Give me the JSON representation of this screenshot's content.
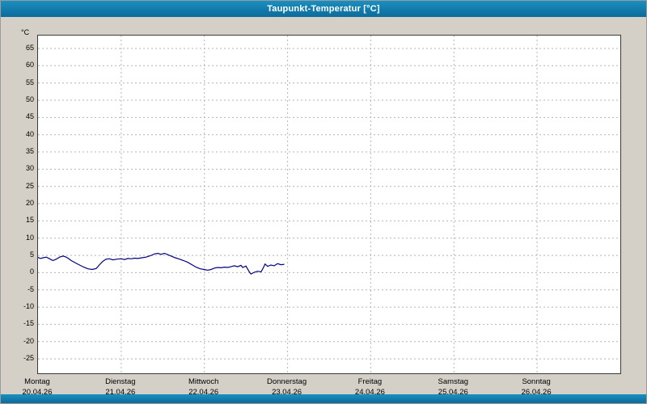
{
  "window": {
    "title": "Taupunkt-Temperatur [°C]"
  },
  "colors": {
    "titlebar": "#1080b0",
    "page_bg": "#d4d0c8",
    "plot_bg": "#ffffff",
    "plot_border": "#3a3a3a",
    "grid": "#b4b4b4",
    "line": "#000080"
  },
  "chart_data": {
    "type": "line",
    "title": "Taupunkt-Temperatur [°C]",
    "xlabel": "",
    "ylabel": "°C",
    "ylim": [
      -29.2,
      68.75
    ],
    "yticks": [
      65,
      60,
      55,
      50,
      45,
      40,
      35,
      30,
      25,
      20,
      15,
      10,
      5,
      0,
      -5,
      -10,
      -15,
      -20,
      -25
    ],
    "grid": "dashed",
    "legend_position": "none",
    "x_total_days": 7,
    "x_days": [
      {
        "name": "Montag",
        "date": "20.04.26"
      },
      {
        "name": "Dienstag",
        "date": "21.04.26"
      },
      {
        "name": "Mittwoch",
        "date": "22.04.26"
      },
      {
        "name": "Donnerstag",
        "date": "23.04.26"
      },
      {
        "name": "Freitag",
        "date": "24.04.26"
      },
      {
        "name": "Samstag",
        "date": "25.04.26"
      },
      {
        "name": "Sonntag",
        "date": "26.04.26"
      }
    ],
    "series": [
      {
        "name": "Taupunkt",
        "color": "#000080",
        "points": [
          [
            0.0,
            4.4
          ],
          [
            0.03,
            4.1
          ],
          [
            0.06,
            4.3
          ],
          [
            0.1,
            4.5
          ],
          [
            0.14,
            4.0
          ],
          [
            0.18,
            3.5
          ],
          [
            0.22,
            3.9
          ],
          [
            0.26,
            4.5
          ],
          [
            0.3,
            4.8
          ],
          [
            0.33,
            4.6
          ],
          [
            0.36,
            4.2
          ],
          [
            0.4,
            3.5
          ],
          [
            0.45,
            2.8
          ],
          [
            0.5,
            2.2
          ],
          [
            0.55,
            1.6
          ],
          [
            0.6,
            1.1
          ],
          [
            0.65,
            0.9
          ],
          [
            0.7,
            1.2
          ],
          [
            0.74,
            2.3
          ],
          [
            0.78,
            3.3
          ],
          [
            0.82,
            3.9
          ],
          [
            0.86,
            4.0
          ],
          [
            0.9,
            3.7
          ],
          [
            0.95,
            3.9
          ],
          [
            1.0,
            4.0
          ],
          [
            1.04,
            3.8
          ],
          [
            1.08,
            4.1
          ],
          [
            1.12,
            4.0
          ],
          [
            1.16,
            4.2
          ],
          [
            1.2,
            4.1
          ],
          [
            1.25,
            4.3
          ],
          [
            1.3,
            4.5
          ],
          [
            1.35,
            4.9
          ],
          [
            1.4,
            5.4
          ],
          [
            1.44,
            5.6
          ],
          [
            1.48,
            5.3
          ],
          [
            1.52,
            5.6
          ],
          [
            1.56,
            5.2
          ],
          [
            1.6,
            4.8
          ],
          [
            1.65,
            4.3
          ],
          [
            1.7,
            3.9
          ],
          [
            1.75,
            3.5
          ],
          [
            1.8,
            3.0
          ],
          [
            1.85,
            2.3
          ],
          [
            1.9,
            1.6
          ],
          [
            1.95,
            1.1
          ],
          [
            2.0,
            0.9
          ],
          [
            2.04,
            0.7
          ],
          [
            2.08,
            0.9
          ],
          [
            2.12,
            1.3
          ],
          [
            2.16,
            1.5
          ],
          [
            2.2,
            1.4
          ],
          [
            2.24,
            1.6
          ],
          [
            2.28,
            1.5
          ],
          [
            2.32,
            1.7
          ],
          [
            2.36,
            2.0
          ],
          [
            2.4,
            1.7
          ],
          [
            2.44,
            2.1
          ],
          [
            2.46,
            1.5
          ],
          [
            2.5,
            1.9
          ],
          [
            2.54,
            0.2
          ],
          [
            2.56,
            -0.4
          ],
          [
            2.6,
            0.1
          ],
          [
            2.64,
            0.4
          ],
          [
            2.68,
            0.2
          ],
          [
            2.7,
            1.0
          ],
          [
            2.73,
            2.5
          ],
          [
            2.76,
            1.8
          ],
          [
            2.8,
            2.2
          ],
          [
            2.84,
            2.0
          ],
          [
            2.88,
            2.6
          ],
          [
            2.92,
            2.3
          ],
          [
            2.96,
            2.4
          ]
        ]
      }
    ]
  }
}
